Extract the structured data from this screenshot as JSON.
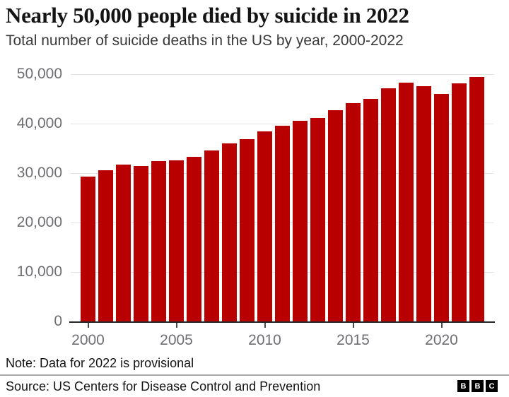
{
  "header": {
    "title": "Nearly 50,000 people died by suicide in 2022",
    "subtitle": "Total number of suicide deaths in the US by year, 2000-2022"
  },
  "chart_data": {
    "type": "bar",
    "title": "Nearly 50,000 people died by suicide in 2022",
    "subtitle": "Total number of suicide deaths in the US by year, 2000-2022",
    "categories": [
      2000,
      2001,
      2002,
      2003,
      2004,
      2005,
      2006,
      2007,
      2008,
      2009,
      2010,
      2011,
      2012,
      2013,
      2014,
      2015,
      2016,
      2017,
      2018,
      2019,
      2020,
      2021,
      2022
    ],
    "values": [
      29350,
      30622,
      31655,
      31484,
      32439,
      32637,
      33300,
      34598,
      36035,
      36909,
      38364,
      39518,
      40600,
      41149,
      42773,
      44193,
      44965,
      47173,
      48344,
      47511,
      45979,
      48183,
      49449
    ],
    "xlabel": "",
    "ylabel": "",
    "ylim": [
      0,
      50000
    ],
    "yticks": [
      0,
      10000,
      20000,
      30000,
      40000,
      50000
    ],
    "ytick_labels": [
      "0",
      "10,000",
      "20,000",
      "30,000",
      "40,000",
      "50,000"
    ],
    "xtick_years": [
      2000,
      2005,
      2010,
      2015,
      2020
    ],
    "grid": true,
    "legend": false,
    "bar_color": "#b80000",
    "gridline_color": "#e2e2e2",
    "axis_color": "#262626",
    "tick_label_color": "#6e6e73"
  },
  "footer": {
    "note": "Note: Data for 2022 is provisional",
    "source": "Source: US Centers for Disease Control and Prevention",
    "logo": [
      "B",
      "B",
      "C"
    ]
  }
}
